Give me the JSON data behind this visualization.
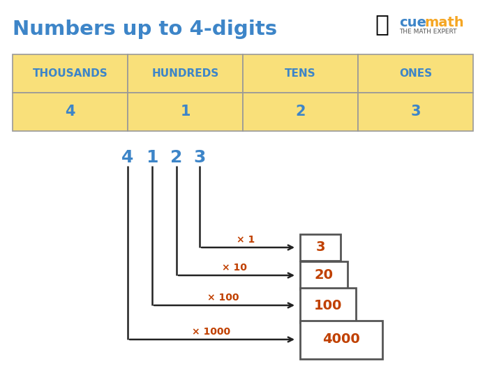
{
  "title": "Numbers up to 4-digits",
  "title_color": "#3d85c8",
  "bg_color": "#ffffff",
  "table_headers": [
    "THOUSANDS",
    "HUNDREDS",
    "TENS",
    "ONES"
  ],
  "table_values": [
    "4",
    "1",
    "2",
    "3"
  ],
  "table_header_color": "#f9e07a",
  "table_value_color": "#f9e07a",
  "table_text_color": "#3d85c8",
  "table_border_color": "#999999",
  "number_label": [
    "4",
    "1",
    "2",
    "3"
  ],
  "number_label_color": "#3d85c8",
  "multipliers": [
    "× 1",
    "× 10",
    "× 100",
    "× 1000"
  ],
  "multiplier_color": "#c04000",
  "box_values": [
    "3",
    "20",
    "100",
    "4000"
  ],
  "box_text_color": "#c04000",
  "box_border_color": "#555555",
  "arrow_color": "#222222",
  "line_color": "#222222",
  "cue_color": "#3d85c8",
  "math_color": "#f5a623",
  "logo_sub_color": "#555555"
}
